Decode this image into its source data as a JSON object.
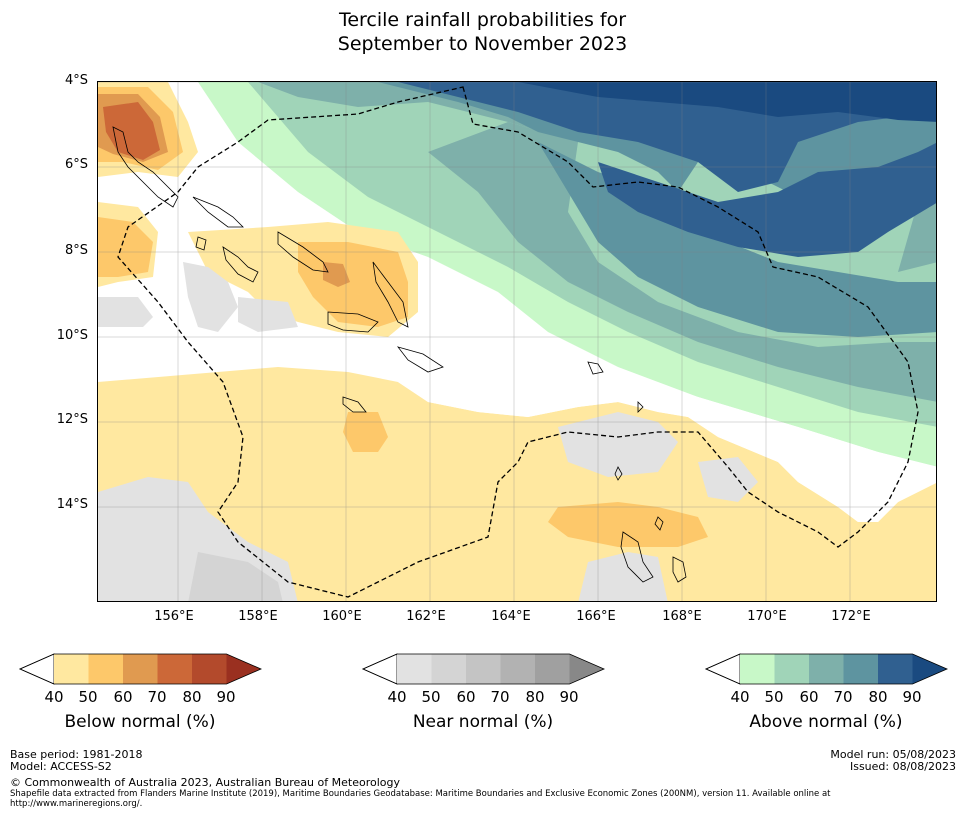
{
  "title": {
    "line1": "Tercile rainfall probabilities for",
    "line2": "September to November 2023"
  },
  "map": {
    "y_axis_labels": [
      "4°S",
      "6°S",
      "8°S",
      "10°S",
      "12°S",
      "14°S"
    ],
    "x_axis_labels": [
      "156°E",
      "158°E",
      "160°E",
      "162°E",
      "164°E",
      "166°E",
      "168°E",
      "170°E",
      "172°E"
    ]
  },
  "colorbars": {
    "below": {
      "label": "Below normal (%)",
      "ticks": [
        "40",
        "50",
        "60",
        "70",
        "80",
        "90"
      ],
      "colors": [
        "#ffe8a0",
        "#fdc86a",
        "#e09a50",
        "#cc6838",
        "#b34a2c",
        "#9a3020"
      ]
    },
    "near": {
      "label": "Near normal (%)",
      "ticks": [
        "40",
        "50",
        "60",
        "70",
        "80",
        "90"
      ],
      "colors": [
        "#e2e2e2",
        "#d4d4d4",
        "#c4c4c4",
        "#b2b2b2",
        "#a0a0a0",
        "#888888"
      ]
    },
    "above": {
      "label": "Above normal (%)",
      "ticks": [
        "40",
        "50",
        "60",
        "70",
        "80",
        "90"
      ],
      "colors": [
        "#c8f8c8",
        "#a0d4b8",
        "#7eb0aa",
        "#5e94a0",
        "#306090",
        "#1a4a80"
      ]
    }
  },
  "footer": {
    "base_period": "Base period: 1981-2018",
    "model": "Model: ACCESS-S2",
    "model_run": "Model run: 05/08/2023",
    "issued": "Issued: 08/08/2023",
    "copyright": "© Commonwealth of Australia 2023, Australian Bureau of Meteorology",
    "shapefile_note": "Shapefile data extracted from Flanders Marine Institute (2019), Maritime Boundaries Geodatabase: Maritime Boundaries and Exclusive Economic Zones (200NM), version 11. Available online at http://www.marineregions.org/."
  }
}
